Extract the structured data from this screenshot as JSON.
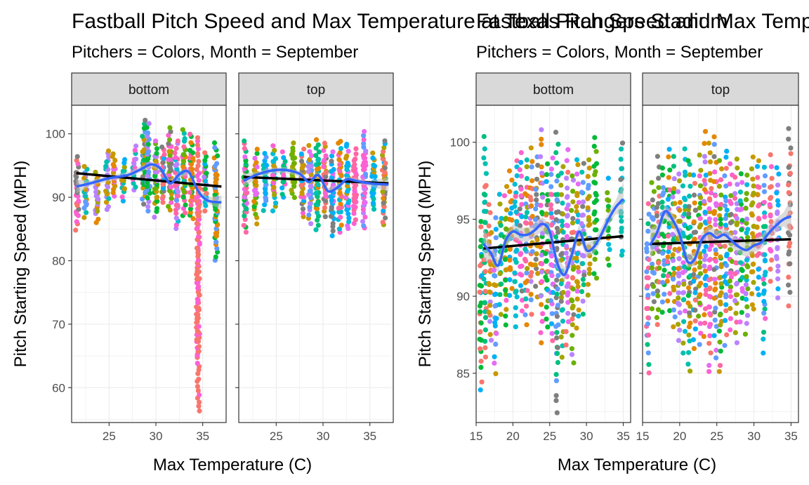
{
  "chart_data": [
    {
      "type": "scatter",
      "title": "Fastball Pitch Speed and Max Temperature at Texas Rangers Stadium",
      "subtitle": "Pitchers = Colors, Month = September",
      "xlabel": "Max Temperature (C)",
      "ylabel": "Pitch Starting Speed (MPH)",
      "facets": [
        "bottom",
        "top"
      ],
      "xlim": [
        21,
        37.5
      ],
      "ylim": [
        54.5,
        104.5
      ],
      "xticks": [
        25,
        30,
        35
      ],
      "yticks": [
        60,
        70,
        80,
        90,
        100
      ],
      "grid": true,
      "panels": [
        {
          "facet": "bottom",
          "lm_line": {
            "x": [
              21.5,
              37
            ],
            "y": [
              93.8,
              91.7
            ]
          },
          "smooth_line": {
            "x": [
              21.5,
              23,
              25,
              27,
              28.5,
              29.5,
              30.5,
              31.5,
              32.5,
              33.5,
              34.5,
              35.5,
              37
            ],
            "y": [
              91.7,
              92.2,
              93.0,
              93.5,
              94.5,
              95.2,
              94.5,
              92.2,
              93.6,
              94.0,
              91.0,
              89.5,
              89.2
            ]
          },
          "columns": [
            {
              "x": 21.6,
              "min": 85,
              "max": 96.5
            },
            {
              "x": 22.5,
              "min": 87,
              "max": 95
            },
            {
              "x": 23.7,
              "min": 86,
              "max": 94
            },
            {
              "x": 24.8,
              "min": 88,
              "max": 97.5
            },
            {
              "x": 25.5,
              "min": 90,
              "max": 97
            },
            {
              "x": 26.5,
              "min": 89.5,
              "max": 96
            },
            {
              "x": 27.7,
              "min": 91,
              "max": 98
            },
            {
              "x": 28.7,
              "min": 89,
              "max": 102
            },
            {
              "x": 29.2,
              "min": 88,
              "max": 101.5
            },
            {
              "x": 30.0,
              "min": 87,
              "max": 99
            },
            {
              "x": 30.8,
              "min": 89,
              "max": 98
            },
            {
              "x": 31.5,
              "min": 88,
              "max": 101
            },
            {
              "x": 32.2,
              "min": 85,
              "max": 99
            },
            {
              "x": 33.0,
              "min": 87,
              "max": 100.5
            },
            {
              "x": 33.8,
              "min": 86.5,
              "max": 100
            },
            {
              "x": 34.5,
              "min": 56.5,
              "max": 99.5
            },
            {
              "x": 35.3,
              "min": 88,
              "max": 97
            },
            {
              "x": 36.4,
              "min": 80,
              "max": 98.5
            }
          ]
        },
        {
          "facet": "top",
          "lm_line": {
            "x": [
              21.5,
              37
            ],
            "y": [
              93.2,
              92.2
            ]
          },
          "smooth_line": {
            "x": [
              21.5,
              23,
              24.5,
              26,
              27.5,
              28.5,
              29.5,
              30.5,
              31.5,
              32.5,
              33.5,
              35,
              37
            ],
            "y": [
              92.6,
              93.6,
              94.2,
              94.3,
              93.7,
              92.4,
              93.5,
              91.0,
              91.5,
              92.8,
              92.6,
              92.2,
              92.0
            ]
          },
          "columns": [
            {
              "x": 21.7,
              "min": 84.5,
              "max": 99
            },
            {
              "x": 22.8,
              "min": 86,
              "max": 97.5
            },
            {
              "x": 23.8,
              "min": 88,
              "max": 97
            },
            {
              "x": 24.8,
              "min": 88,
              "max": 98
            },
            {
              "x": 25.8,
              "min": 90,
              "max": 97
            },
            {
              "x": 26.8,
              "min": 90,
              "max": 98.5
            },
            {
              "x": 27.8,
              "min": 87,
              "max": 97.5
            },
            {
              "x": 28.6,
              "min": 86,
              "max": 98
            },
            {
              "x": 29.4,
              "min": 85,
              "max": 99
            },
            {
              "x": 30.2,
              "min": 87,
              "max": 98.5
            },
            {
              "x": 31.0,
              "min": 84,
              "max": 97
            },
            {
              "x": 31.8,
              "min": 84.5,
              "max": 99
            },
            {
              "x": 32.6,
              "min": 85,
              "max": 98.5
            },
            {
              "x": 33.4,
              "min": 86,
              "max": 97.5
            },
            {
              "x": 34.4,
              "min": 85,
              "max": 100.5
            },
            {
              "x": 35.4,
              "min": 88,
              "max": 97
            },
            {
              "x": 36.5,
              "min": 85.5,
              "max": 99
            }
          ]
        }
      ]
    },
    {
      "type": "scatter",
      "title": "Fastball Pitch Speed and Max Temperature at Texas Rangers Stadium",
      "subtitle": "Pitchers = Colors, Month = September",
      "xlabel": "Max Temperature (C)",
      "ylabel": "Pitch Starting Speed (MPH)",
      "facets": [
        "bottom",
        "top"
      ],
      "xlim": [
        15,
        36
      ],
      "ylim": [
        81.8,
        102.4
      ],
      "xticks": [
        15,
        20,
        25,
        30,
        35
      ],
      "yticks": [
        85,
        90,
        95,
        100
      ],
      "grid": true,
      "panels": [
        {
          "facet": "bottom",
          "lm_line": {
            "x": [
              16,
              35
            ],
            "y": [
              93.1,
              93.9
            ]
          },
          "smooth_line": {
            "x": [
              16,
              17,
              18,
              19,
              20,
              21,
              22,
              23,
              24,
              25,
              26,
              27,
              28,
              29,
              30,
              31,
              32,
              33,
              34,
              35
            ],
            "y": [
              93.4,
              92.8,
              92.0,
              93.6,
              94.2,
              94.0,
              94.0,
              94.3,
              94.7,
              94.2,
              92.2,
              91.4,
              92.7,
              94.2,
              93.0,
              93.2,
              94.0,
              95.0,
              95.8,
              96.3
            ]
          },
          "columns": [
            {
              "x": 15.6,
              "min": 84,
              "max": 95
            },
            {
              "x": 16.2,
              "min": 86,
              "max": 100.3
            },
            {
              "x": 16.9,
              "min": 87,
              "max": 96
            },
            {
              "x": 17.6,
              "min": 85,
              "max": 95
            },
            {
              "x": 18.3,
              "min": 89,
              "max": 96.5
            },
            {
              "x": 19.0,
              "min": 88,
              "max": 97
            },
            {
              "x": 19.7,
              "min": 90,
              "max": 98
            },
            {
              "x": 20.4,
              "min": 88,
              "max": 99
            },
            {
              "x": 21.1,
              "min": 89,
              "max": 99.5
            },
            {
              "x": 21.8,
              "min": 88,
              "max": 99
            },
            {
              "x": 22.5,
              "min": 89,
              "max": 99.5
            },
            {
              "x": 23.2,
              "min": 90,
              "max": 99
            },
            {
              "x": 23.9,
              "min": 87,
              "max": 101
            },
            {
              "x": 24.6,
              "min": 88,
              "max": 98.5
            },
            {
              "x": 25.3,
              "min": 87,
              "max": 99
            },
            {
              "x": 26.0,
              "min": 82.5,
              "max": 100.5
            },
            {
              "x": 26.7,
              "min": 86,
              "max": 98.5
            },
            {
              "x": 27.4,
              "min": 87,
              "max": 99.5
            },
            {
              "x": 28.1,
              "min": 85.5,
              "max": 98
            },
            {
              "x": 28.8,
              "min": 88,
              "max": 99
            },
            {
              "x": 29.5,
              "min": 89,
              "max": 98.5
            },
            {
              "x": 30.3,
              "min": 90,
              "max": 99
            },
            {
              "x": 31.2,
              "min": 91,
              "max": 100.5
            },
            {
              "x": 33.0,
              "min": 92,
              "max": 97.5
            },
            {
              "x": 34.8,
              "min": 92.5,
              "max": 100
            }
          ]
        },
        {
          "facet": "top",
          "lm_line": {
            "x": [
              16,
              35
            ],
            "y": [
              93.4,
              93.7
            ]
          },
          "smooth_line": {
            "x": [
              16,
              17,
              18,
              19,
              20,
              21,
              22,
              23,
              24,
              25,
              26,
              27,
              28,
              29,
              30,
              31,
              32,
              33,
              34,
              35
            ],
            "y": [
              93.3,
              94.2,
              95.5,
              95.0,
              94.0,
              92.3,
              92.4,
              93.7,
              94.1,
              93.8,
              94.0,
              93.6,
              93.2,
              93.0,
              93.3,
              93.5,
              94.1,
              94.6,
              95.0,
              95.2
            ]
          },
          "columns": [
            {
              "x": 15.7,
              "min": 85,
              "max": 96
            },
            {
              "x": 16.4,
              "min": 89,
              "max": 97.5
            },
            {
              "x": 17.1,
              "min": 88,
              "max": 99
            },
            {
              "x": 17.8,
              "min": 89,
              "max": 98.5
            },
            {
              "x": 18.5,
              "min": 89,
              "max": 99.5
            },
            {
              "x": 19.2,
              "min": 88,
              "max": 99
            },
            {
              "x": 19.9,
              "min": 87,
              "max": 98
            },
            {
              "x": 20.6,
              "min": 86.5,
              "max": 99.5
            },
            {
              "x": 21.3,
              "min": 85,
              "max": 99
            },
            {
              "x": 22.0,
              "min": 86.5,
              "max": 98
            },
            {
              "x": 22.7,
              "min": 87,
              "max": 99
            },
            {
              "x": 23.4,
              "min": 87.5,
              "max": 100.5
            },
            {
              "x": 24.1,
              "min": 85,
              "max": 100
            },
            {
              "x": 24.8,
              "min": 86,
              "max": 100.5
            },
            {
              "x": 25.5,
              "min": 85,
              "max": 99
            },
            {
              "x": 26.2,
              "min": 87,
              "max": 99.5
            },
            {
              "x": 26.9,
              "min": 88,
              "max": 98.5
            },
            {
              "x": 27.6,
              "min": 87,
              "max": 99
            },
            {
              "x": 28.3,
              "min": 88.5,
              "max": 98
            },
            {
              "x": 29.0,
              "min": 87.5,
              "max": 98
            },
            {
              "x": 29.8,
              "min": 89,
              "max": 99
            },
            {
              "x": 30.6,
              "min": 90,
              "max": 99
            },
            {
              "x": 31.4,
              "min": 86.5,
              "max": 98.5
            },
            {
              "x": 32.3,
              "min": 91,
              "max": 99
            },
            {
              "x": 33.2,
              "min": 90,
              "max": 98.5
            },
            {
              "x": 34.8,
              "min": 89.5,
              "max": 101
            }
          ]
        }
      ]
    }
  ],
  "palette": [
    "#F8766D",
    "#E58700",
    "#C99800",
    "#A3A500",
    "#6BB100",
    "#00BA38",
    "#00BF7D",
    "#00C0AF",
    "#00BCD8",
    "#00B0F6",
    "#619CFF",
    "#B983FF",
    "#E76BF3",
    "#FD61D1",
    "#FF67A4",
    "#7F7F7F"
  ],
  "colors": {
    "lm_line": "#000000",
    "smooth_line": "#3366FF",
    "ribbon": "#BEBEBE",
    "strip_fill": "#D9D9D9",
    "panel_grid": "#EBEBEB"
  }
}
